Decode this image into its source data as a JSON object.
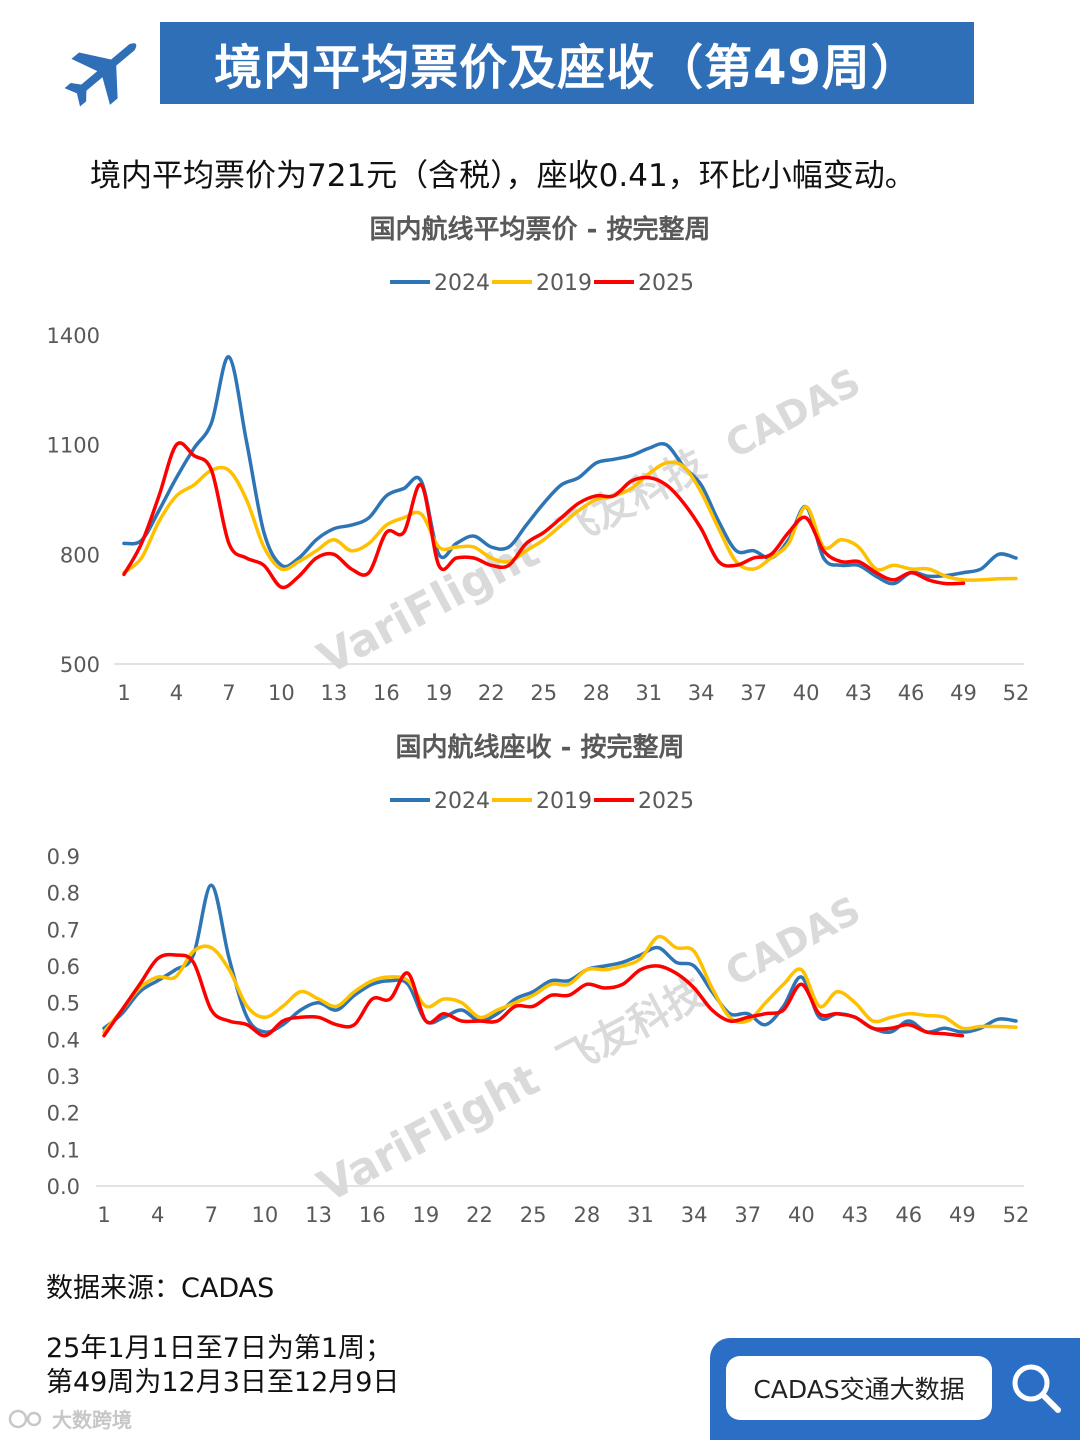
{
  "header": {
    "title": "境内平均票价及座收（第49周）",
    "summary": "境内平均票价为721元（含税），座收0.41，环比小幅变动。"
  },
  "colors": {
    "2024": "#2e75b6",
    "2019": "#ffc000",
    "2025": "#ff0000",
    "brand": "#2f6fb8"
  },
  "chart_data": [
    {
      "type": "line",
      "title": "国内航线平均票价 - 按完整周",
      "ylim": [
        500,
        1400
      ],
      "yticks": [
        500,
        800,
        1100,
        1400
      ],
      "xticks": [
        1,
        4,
        7,
        10,
        13,
        16,
        19,
        22,
        25,
        28,
        31,
        34,
        37,
        40,
        43,
        46,
        49,
        52
      ],
      "series": [
        {
          "name": "2024",
          "color": "#2e75b6",
          "values": [
            830,
            838,
            920,
            1010,
            1090,
            1160,
            1340,
            1110,
            860,
            770,
            790,
            840,
            870,
            880,
            900,
            960,
            980,
            1000,
            800,
            830,
            850,
            820,
            820,
            880,
            940,
            990,
            1010,
            1050,
            1060,
            1070,
            1090,
            1100,
            1040,
            990,
            890,
            810,
            810,
            790,
            840,
            930,
            790,
            770,
            770,
            740,
            720,
            750,
            740,
            742,
            750,
            760,
            800,
            790
          ]
        },
        {
          "name": "2019",
          "color": "#ffc000",
          "values": [
            750,
            790,
            890,
            960,
            990,
            1030,
            1030,
            950,
            820,
            760,
            780,
            810,
            840,
            810,
            830,
            880,
            900,
            910,
            820,
            820,
            820,
            790,
            780,
            810,
            840,
            880,
            920,
            950,
            960,
            980,
            1020,
            1050,
            1040,
            970,
            870,
            780,
            760,
            790,
            830,
            930,
            820,
            840,
            820,
            760,
            770,
            760,
            760,
            740,
            730,
            730,
            733,
            734
          ]
        },
        {
          "name": "2025",
          "color": "#ff0000",
          "values": [
            745,
            830,
            960,
            1100,
            1070,
            1030,
            830,
            790,
            770,
            710,
            740,
            790,
            800,
            760,
            750,
            860,
            860,
            990,
            770,
            790,
            790,
            770,
            770,
            830,
            860,
            900,
            940,
            960,
            960,
            1000,
            1010,
            990,
            940,
            870,
            780,
            770,
            790,
            800,
            860,
            900,
            810,
            780,
            780,
            750,
            730,
            750,
            730,
            720,
            721
          ]
        }
      ]
    },
    {
      "type": "line",
      "title": "国内航线座收 - 按完整周",
      "ylim": [
        0.0,
        0.9
      ],
      "yticks": [
        "0.0",
        "0.1",
        "0.2",
        "0.3",
        "0.4",
        "0.5",
        "0.6",
        "0.7",
        "0.8",
        "0.9"
      ],
      "xticks": [
        1,
        4,
        7,
        10,
        13,
        16,
        19,
        22,
        25,
        28,
        31,
        34,
        37,
        40,
        43,
        46,
        49,
        52
      ],
      "series": [
        {
          "name": "2024",
          "color": "#2e75b6",
          "values": [
            0.43,
            0.47,
            0.53,
            0.56,
            0.59,
            0.63,
            0.82,
            0.62,
            0.46,
            0.42,
            0.44,
            0.48,
            0.5,
            0.48,
            0.52,
            0.55,
            0.56,
            0.55,
            0.45,
            0.46,
            0.48,
            0.45,
            0.47,
            0.51,
            0.53,
            0.56,
            0.56,
            0.59,
            0.6,
            0.61,
            0.63,
            0.65,
            0.61,
            0.6,
            0.53,
            0.47,
            0.47,
            0.44,
            0.49,
            0.57,
            0.46,
            0.47,
            0.46,
            0.43,
            0.42,
            0.45,
            0.42,
            0.43,
            0.42,
            0.43,
            0.455,
            0.45
          ]
        },
        {
          "name": "2019",
          "color": "#ffc000",
          "values": [
            0.42,
            0.48,
            0.54,
            0.57,
            0.57,
            0.64,
            0.65,
            0.59,
            0.49,
            0.46,
            0.49,
            0.53,
            0.51,
            0.49,
            0.53,
            0.56,
            0.57,
            0.56,
            0.49,
            0.51,
            0.5,
            0.46,
            0.48,
            0.5,
            0.52,
            0.55,
            0.55,
            0.59,
            0.59,
            0.6,
            0.62,
            0.68,
            0.65,
            0.64,
            0.54,
            0.46,
            0.45,
            0.5,
            0.55,
            0.59,
            0.49,
            0.53,
            0.5,
            0.45,
            0.46,
            0.47,
            0.465,
            0.46,
            0.43,
            0.435,
            0.435,
            0.433
          ]
        },
        {
          "name": "2025",
          "color": "#ff0000",
          "values": [
            0.41,
            0.48,
            0.55,
            0.62,
            0.63,
            0.61,
            0.48,
            0.45,
            0.44,
            0.41,
            0.45,
            0.46,
            0.46,
            0.44,
            0.44,
            0.51,
            0.51,
            0.58,
            0.45,
            0.47,
            0.45,
            0.45,
            0.45,
            0.49,
            0.49,
            0.52,
            0.52,
            0.55,
            0.54,
            0.55,
            0.59,
            0.6,
            0.58,
            0.54,
            0.48,
            0.45,
            0.46,
            0.47,
            0.48,
            0.55,
            0.47,
            0.47,
            0.46,
            0.43,
            0.43,
            0.44,
            0.42,
            0.415,
            0.41
          ]
        }
      ]
    }
  ],
  "watermarks": {
    "brand_en": "VariFlight",
    "brand_cn": "飞友科技",
    "cadas": "CADAS"
  },
  "footer": {
    "source": "数据来源：CADAS",
    "note_line1": "25年1月1日至7日为第1周；",
    "note_line2": "第49周为12月3日至12月9日",
    "search_label": "CADAS交通大数据",
    "logo_text": "大数跨境"
  }
}
